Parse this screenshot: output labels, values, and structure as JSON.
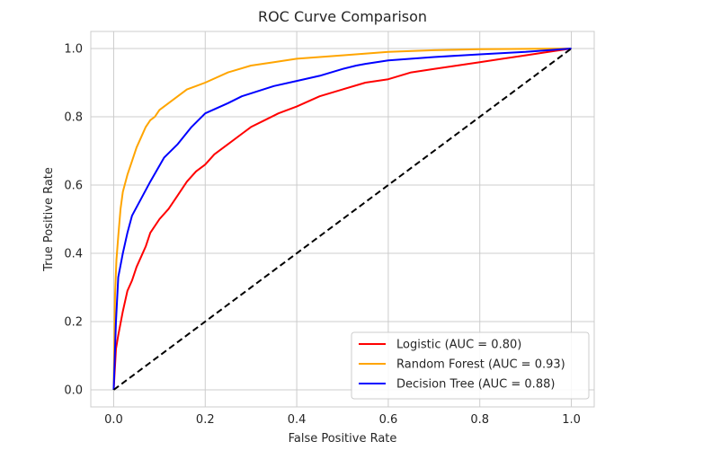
{
  "chart_data": {
    "type": "line",
    "title": "ROC Curve Comparison",
    "xlabel": "False Positive Rate",
    "ylabel": "True Positive Rate",
    "xlim": [
      -0.05,
      1.05
    ],
    "ylim": [
      -0.05,
      1.05
    ],
    "xticks": [
      0.0,
      0.2,
      0.4,
      0.6,
      0.8,
      1.0
    ],
    "yticks": [
      0.0,
      0.2,
      0.4,
      0.6,
      0.8,
      1.0
    ],
    "xtick_labels": [
      "0.0",
      "0.2",
      "0.4",
      "0.6",
      "0.8",
      "1.0"
    ],
    "ytick_labels": [
      "0.0",
      "0.2",
      "0.4",
      "0.6",
      "0.8",
      "1.0"
    ],
    "grid": true,
    "legend_position": "lower-right",
    "series": [
      {
        "name": "Logistic (AUC = 0.80)",
        "color": "#ff0000",
        "x": [
          0.0,
          0.005,
          0.01,
          0.02,
          0.03,
          0.04,
          0.05,
          0.06,
          0.07,
          0.08,
          0.1,
          0.12,
          0.14,
          0.16,
          0.18,
          0.2,
          0.22,
          0.25,
          0.28,
          0.3,
          0.33,
          0.36,
          0.4,
          0.45,
          0.5,
          0.55,
          0.6,
          0.65,
          0.7,
          0.75,
          0.8,
          0.85,
          0.9,
          0.95,
          1.0
        ],
        "y": [
          0.0,
          0.12,
          0.16,
          0.23,
          0.29,
          0.32,
          0.36,
          0.39,
          0.42,
          0.46,
          0.5,
          0.53,
          0.57,
          0.61,
          0.64,
          0.66,
          0.69,
          0.72,
          0.75,
          0.77,
          0.79,
          0.81,
          0.83,
          0.86,
          0.88,
          0.9,
          0.91,
          0.93,
          0.94,
          0.95,
          0.96,
          0.97,
          0.98,
          0.99,
          1.0
        ]
      },
      {
        "name": "Random Forest (AUC = 0.93)",
        "color": "#ffa500",
        "x": [
          0.0,
          0.003,
          0.006,
          0.01,
          0.015,
          0.02,
          0.03,
          0.04,
          0.05,
          0.06,
          0.07,
          0.08,
          0.09,
          0.1,
          0.12,
          0.14,
          0.16,
          0.18,
          0.2,
          0.25,
          0.3,
          0.35,
          0.4,
          0.5,
          0.6,
          0.7,
          0.8,
          0.9,
          1.0
        ],
        "y": [
          0.0,
          0.28,
          0.38,
          0.45,
          0.53,
          0.58,
          0.63,
          0.67,
          0.71,
          0.74,
          0.77,
          0.79,
          0.8,
          0.82,
          0.84,
          0.86,
          0.88,
          0.89,
          0.9,
          0.93,
          0.95,
          0.96,
          0.97,
          0.98,
          0.99,
          0.995,
          0.998,
          0.999,
          1.0
        ]
      },
      {
        "name": "Decision Tree (AUC = 0.88)",
        "color": "#0000ff",
        "x": [
          0.0,
          0.005,
          0.01,
          0.02,
          0.03,
          0.04,
          0.06,
          0.08,
          0.11,
          0.14,
          0.17,
          0.2,
          0.25,
          0.28,
          0.35,
          0.4,
          0.45,
          0.5,
          0.53,
          0.55,
          0.6,
          0.7,
          0.8,
          0.9,
          0.95,
          1.0
        ],
        "y": [
          0.0,
          0.2,
          0.33,
          0.4,
          0.46,
          0.51,
          0.56,
          0.61,
          0.68,
          0.72,
          0.77,
          0.81,
          0.84,
          0.86,
          0.89,
          0.905,
          0.92,
          0.94,
          0.95,
          0.955,
          0.965,
          0.975,
          0.983,
          0.99,
          0.995,
          1.0
        ]
      },
      {
        "name": "",
        "color": "#000000",
        "dashed": true,
        "x": [
          0.0,
          1.0
        ],
        "y": [
          0.0,
          1.0
        ]
      }
    ]
  }
}
